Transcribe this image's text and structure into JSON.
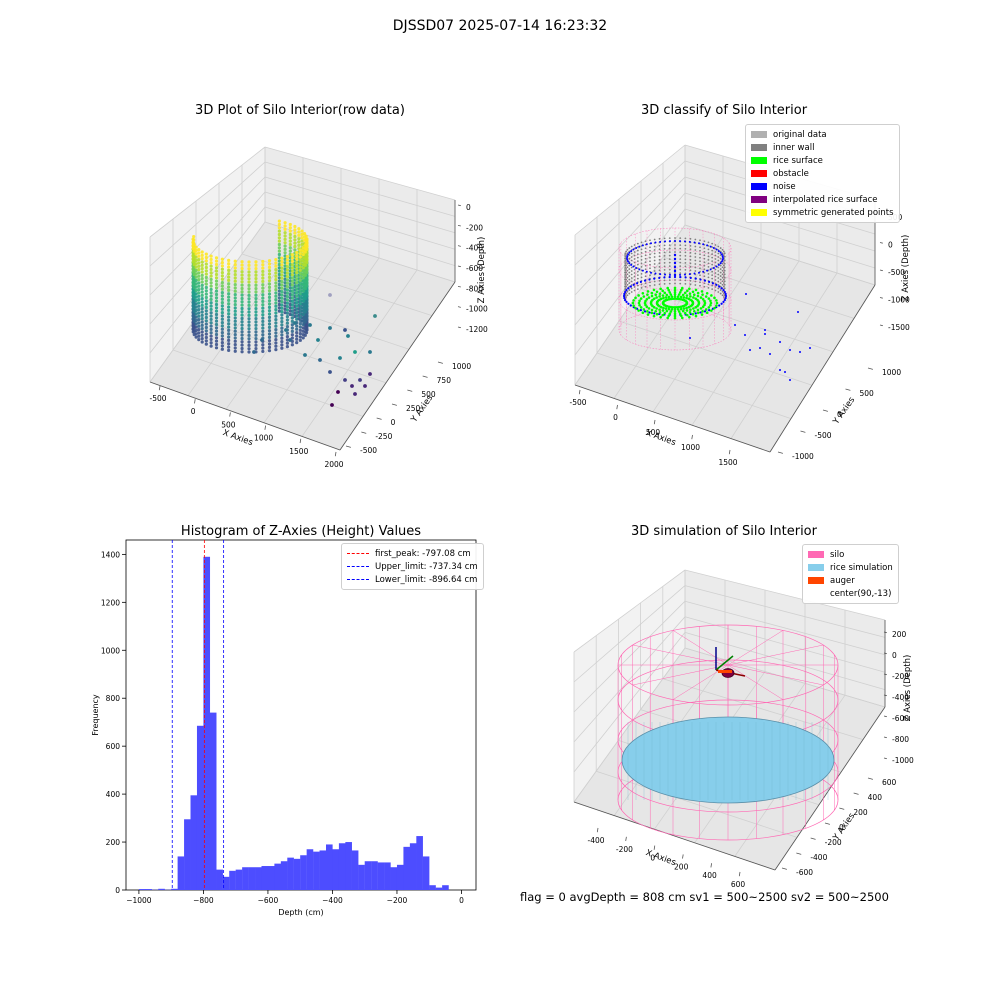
{
  "figure_title": "DJSSD07 2025-07-14 16:23:32",
  "status_line": "flag = 0     avgDepth = 808 cm  sv1 = 500~2500  sv2 = 500~2500",
  "colors": {
    "original": "#b0b0b0",
    "inner_wall": "#808080",
    "rice_surface": "#00ff00",
    "obstacle": "#ff0000",
    "noise": "#0000ff",
    "interpolated": "#800080",
    "symmetric": "#ffff00",
    "silo": "#ff69b4",
    "rice_sim": "#87ceeb",
    "auger": "#ff4500",
    "hist_bar": "#4d4dff"
  },
  "chart_data": [
    {
      "type": "scatter",
      "title": "3D Plot of Silo Interior(row data)",
      "xlabel": "X Axies",
      "ylabel": "Y Axies",
      "zlabel": "Z Axies (Depth)",
      "x_ticks": [
        "-500",
        "0",
        "500",
        "1000",
        "1500",
        "2000"
      ],
      "y_ticks": [
        "-500",
        "-250",
        "0",
        "250",
        "500",
        "750",
        "1000"
      ],
      "z_ticks": [
        "0",
        "-200",
        "-400",
        "-600",
        "-800",
        "-1000",
        "-1200"
      ],
      "colormap": "viridis"
    },
    {
      "type": "scatter",
      "title": "3D classify of Silo Interior",
      "xlabel": "X Axies",
      "ylabel": "Y Axies",
      "zlabel": "Z Axies (Depth)",
      "x_ticks": [
        "-500",
        "0",
        "500",
        "1000",
        "1500"
      ],
      "y_ticks": [
        "-1000",
        "-500",
        "0",
        "500",
        "1000"
      ],
      "z_ticks": [
        "500",
        "0",
        "-500",
        "-1000",
        "-1500"
      ],
      "legend": [
        "original data",
        "inner wall",
        "rice surface",
        "obstacle",
        "noise",
        "interpolated rice surface",
        "symmetric generated points"
      ],
      "legend_position": "top-right"
    },
    {
      "type": "bar",
      "title": "Histogram of Z-Axies (Height) Values",
      "xlabel": "Depth (cm)",
      "ylabel": "Frequency",
      "xlim": [
        -1040,
        45
      ],
      "ylim": [
        0,
        1460
      ],
      "x_ticks": [
        -1000,
        -800,
        -600,
        -400,
        -200,
        0
      ],
      "y_ticks": [
        0,
        200,
        400,
        600,
        800,
        1000,
        1200,
        1400
      ],
      "bin_width": 20.5,
      "bins": [
        {
          "x": -1000,
          "y": 4
        },
        {
          "x": -980,
          "y": 4
        },
        {
          "x": -960,
          "y": 1
        },
        {
          "x": -940,
          "y": 5
        },
        {
          "x": -920,
          "y": 1
        },
        {
          "x": -900,
          "y": 5
        },
        {
          "x": -880,
          "y": 140
        },
        {
          "x": -860,
          "y": 295
        },
        {
          "x": -840,
          "y": 395
        },
        {
          "x": -820,
          "y": 685
        },
        {
          "x": -800,
          "y": 1390
        },
        {
          "x": -780,
          "y": 740
        },
        {
          "x": -760,
          "y": 85
        },
        {
          "x": -740,
          "y": 55
        },
        {
          "x": -720,
          "y": 80
        },
        {
          "x": -700,
          "y": 85
        },
        {
          "x": -680,
          "y": 95
        },
        {
          "x": -660,
          "y": 95
        },
        {
          "x": -640,
          "y": 95
        },
        {
          "x": -620,
          "y": 100
        },
        {
          "x": -600,
          "y": 100
        },
        {
          "x": -580,
          "y": 110
        },
        {
          "x": -560,
          "y": 120
        },
        {
          "x": -540,
          "y": 135
        },
        {
          "x": -520,
          "y": 130
        },
        {
          "x": -500,
          "y": 145
        },
        {
          "x": -480,
          "y": 170
        },
        {
          "x": -460,
          "y": 160
        },
        {
          "x": -440,
          "y": 165
        },
        {
          "x": -420,
          "y": 190
        },
        {
          "x": -400,
          "y": 170
        },
        {
          "x": -380,
          "y": 195
        },
        {
          "x": -360,
          "y": 200
        },
        {
          "x": -340,
          "y": 165
        },
        {
          "x": -320,
          "y": 105
        },
        {
          "x": -300,
          "y": 120
        },
        {
          "x": -280,
          "y": 120
        },
        {
          "x": -260,
          "y": 115
        },
        {
          "x": -240,
          "y": 115
        },
        {
          "x": -220,
          "y": 95
        },
        {
          "x": -200,
          "y": 105
        },
        {
          "x": -180,
          "y": 180
        },
        {
          "x": -160,
          "y": 195
        },
        {
          "x": -140,
          "y": 225
        },
        {
          "x": -120,
          "y": 140
        },
        {
          "x": -100,
          "y": 20
        },
        {
          "x": -80,
          "y": 10
        },
        {
          "x": -60,
          "y": 20
        }
      ],
      "vlines": [
        {
          "label": "first_peak: -797.08 cm",
          "x": -797.08,
          "color": "#ff0000"
        },
        {
          "label": "Upper_limit: -737.34 cm",
          "x": -737.34,
          "color": "#0000ff"
        },
        {
          "label": "Lower_limit: -896.64 cm",
          "x": -896.64,
          "color": "#0000ff"
        }
      ],
      "legend_position": "top-right"
    },
    {
      "type": "scatter",
      "title": "3D simulation of Silo Interior",
      "xlabel": "X Axies",
      "ylabel": "Y Axies",
      "zlabel": "Z Axies (Depth)",
      "x_ticks": [
        "-400",
        "-200",
        "0",
        "200",
        "400",
        "600"
      ],
      "y_ticks": [
        "-600",
        "-400",
        "-200",
        "0",
        "200",
        "400",
        "600"
      ],
      "z_ticks": [
        "200",
        "0",
        "-200",
        "-400",
        "-600",
        "-800",
        "-1000"
      ],
      "legend": [
        "silo",
        "rice simulation",
        "auger",
        "center(90,-13)"
      ],
      "legend_position": "top-right"
    }
  ]
}
